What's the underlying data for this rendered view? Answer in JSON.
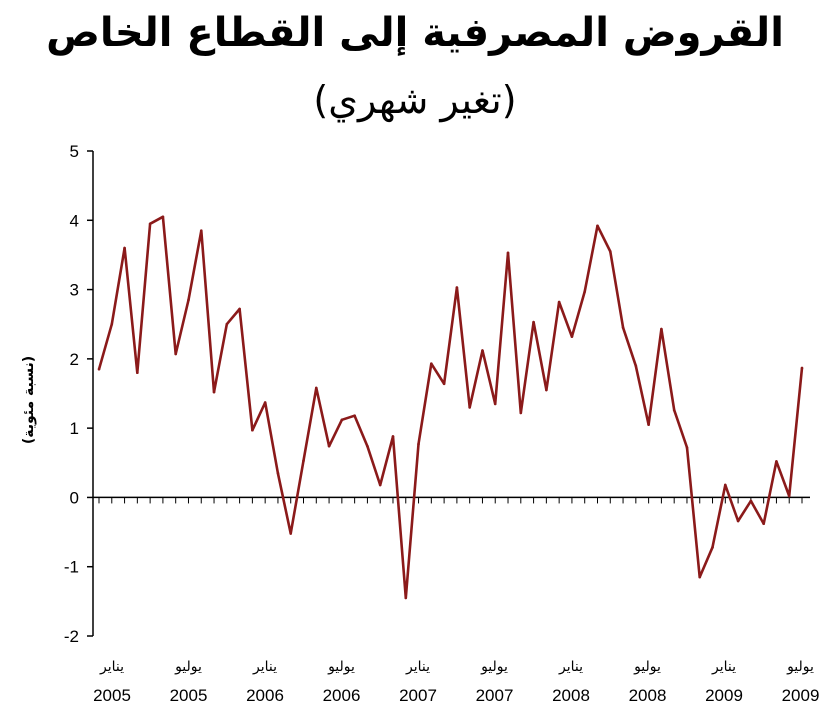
{
  "chart_data": {
    "type": "line",
    "title": "القروض المصرفية إلى القطاع الخاص",
    "subtitle": "(تغير شهري)",
    "ylabel": "(نسبة مئوية)",
    "xlabel": "",
    "ylim": [
      -2,
      5
    ],
    "yticks": [
      -2,
      -1,
      0,
      1,
      2,
      3,
      4,
      5
    ],
    "x_tick_labels": [
      {
        "month": "يناير",
        "year": "2005"
      },
      {
        "month": "يوليو",
        "year": "2005"
      },
      {
        "month": "يناير",
        "year": "2006"
      },
      {
        "month": "يوليو",
        "year": "2006"
      },
      {
        "month": "يناير",
        "year": "2007"
      },
      {
        "month": "يوليو",
        "year": "2007"
      },
      {
        "month": "يناير",
        "year": "2008"
      },
      {
        "month": "يوليو",
        "year": "2008"
      },
      {
        "month": "يناير",
        "year": "2009"
      },
      {
        "month": "يوليو",
        "year": "2009"
      }
    ],
    "grid": false,
    "legend": "none",
    "line_color": "#8b1a1a",
    "series": [
      {
        "values": [
          1.85,
          2.5,
          3.6,
          1.8,
          3.95,
          4.05,
          2.07,
          2.85,
          3.85,
          1.52,
          2.5,
          2.72,
          0.97,
          1.37,
          0.35,
          -0.52,
          0.53,
          1.58,
          0.74,
          1.12,
          1.18,
          0.74,
          0.18,
          0.88,
          -1.45,
          0.77,
          1.93,
          1.64,
          3.03,
          1.3,
          2.12,
          1.35,
          3.53,
          1.22,
          2.53,
          1.55,
          2.82,
          2.32,
          2.97,
          3.92,
          3.55,
          2.45,
          1.9,
          1.05,
          2.43,
          1.26,
          0.72,
          -1.15,
          -0.72,
          0.18,
          -0.34,
          -0.05,
          -0.38,
          0.52,
          0.02,
          1.87
        ]
      }
    ]
  }
}
